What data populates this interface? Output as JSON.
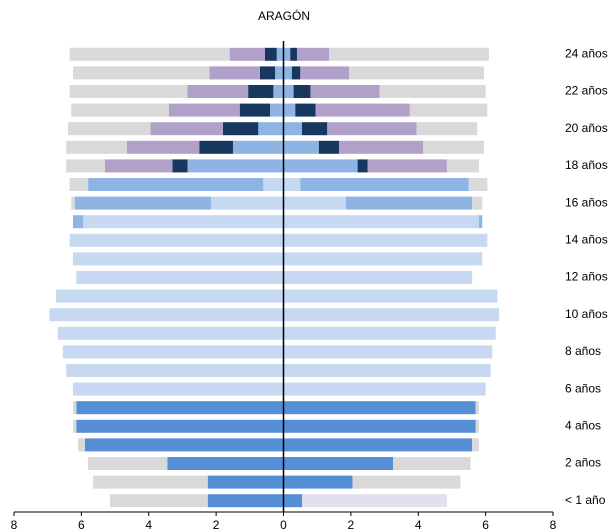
{
  "chart_data": {
    "type": "pyramid",
    "title": "ARAGÓN",
    "categories": [
      "< 1 año",
      null,
      "2 años",
      null,
      "4 años",
      null,
      "6 años",
      null,
      "8 años",
      null,
      "10 años",
      null,
      "12 años",
      null,
      "14 años",
      null,
      "16 años",
      null,
      "18 años",
      null,
      "20 años",
      null,
      "22 años",
      null,
      "24 años"
    ],
    "xlim": [
      -8,
      8
    ],
    "xticks": [
      {
        "value": -8,
        "label": "8"
      },
      {
        "value": -6,
        "label": "6"
      },
      {
        "value": -4,
        "label": "4"
      },
      {
        "value": -2,
        "label": "2"
      },
      0,
      2,
      4,
      6,
      8
    ],
    "series": [
      {
        "color": "#c6d9f1",
        "left": [
          0,
          0,
          0,
          0,
          0,
          0,
          -6.25,
          -6.45,
          -6.55,
          -6.7,
          -6.95,
          -6.75,
          -6.15,
          -6.25,
          -6.35,
          -5.95,
          -2.15,
          -0.6,
          0,
          0,
          0,
          0,
          0,
          0,
          0
        ],
        "right": [
          0,
          0,
          0,
          0,
          0,
          0,
          6.0,
          6.15,
          6.2,
          6.3,
          6.4,
          6.35,
          5.6,
          5.9,
          6.05,
          5.8,
          1.85,
          0.5,
          0,
          0,
          0,
          0,
          0,
          0,
          0
        ]
      },
      {
        "color": "#8db4e2",
        "left": [
          0,
          0,
          0,
          0,
          0,
          0,
          0,
          0,
          0,
          0,
          0,
          0,
          0,
          0,
          0,
          -0.3,
          -4.05,
          -5.2,
          -2.85,
          -1.5,
          -0.75,
          -0.4,
          -0.3,
          -0.25,
          -0.2
        ],
        "right": [
          0,
          0,
          0,
          0,
          0,
          0,
          0,
          0,
          0,
          0,
          0,
          0,
          0,
          0,
          0,
          0.1,
          3.75,
          5.0,
          2.2,
          1.05,
          0.55,
          0.35,
          0.3,
          0.25,
          0.2
        ]
      },
      {
        "color": "#558ed5",
        "left": [
          -2.25,
          -2.25,
          -3.45,
          -5.9,
          -6.15,
          -6.15,
          0,
          0,
          0,
          0,
          0,
          0,
          0,
          0,
          0,
          0,
          0,
          0,
          0,
          0,
          0,
          0,
          0,
          0,
          0
        ],
        "right": [
          0.55,
          2.05,
          3.25,
          5.6,
          5.7,
          5.7,
          0,
          0,
          0,
          0,
          0,
          0,
          0,
          0,
          0,
          0,
          0,
          0,
          0,
          0,
          0,
          0,
          0,
          0,
          0
        ]
      },
      {
        "color": "#17375e",
        "left": [
          0,
          0,
          0,
          0,
          0,
          0,
          0,
          0,
          0,
          0,
          0,
          0,
          0,
          0,
          0,
          0,
          0,
          0,
          -0.45,
          -1.0,
          -1.05,
          -0.9,
          -0.75,
          -0.45,
          -0.35
        ],
        "right": [
          0,
          0,
          0,
          0,
          0,
          0,
          0,
          0,
          0,
          0,
          0,
          0,
          0,
          0,
          0,
          0,
          0,
          0,
          0.3,
          0.6,
          0.75,
          0.6,
          0.5,
          0.25,
          0.2
        ]
      },
      {
        "color": "#b1a0c7",
        "left": [
          0,
          0,
          0,
          0,
          0,
          0,
          0,
          0,
          0,
          0,
          0,
          0,
          0,
          0,
          0,
          0,
          0,
          0,
          -2.0,
          -2.15,
          -2.15,
          -2.1,
          -1.8,
          -1.5,
          -1.05
        ],
        "right": [
          0,
          0,
          0,
          0,
          0,
          0,
          0,
          0,
          0,
          0,
          0,
          0,
          0,
          0,
          0,
          0,
          0,
          0,
          2.35,
          2.5,
          2.65,
          2.8,
          2.05,
          1.45,
          0.95
        ]
      },
      {
        "color": "#e4dfec",
        "left": [
          0,
          0,
          0,
          0,
          0,
          0,
          0,
          0,
          0,
          0,
          0,
          0,
          0,
          0,
          0,
          0,
          0,
          0,
          0,
          0,
          0,
          0,
          0,
          0,
          0
        ],
        "right": [
          4.3,
          0,
          0,
          0,
          0,
          0,
          0,
          0,
          0,
          0,
          0,
          0,
          0,
          0,
          0,
          0,
          0,
          0,
          0,
          0,
          0,
          0,
          0,
          0,
          0
        ]
      },
      {
        "color": "#d9d9d9",
        "left": [
          -2.9,
          -3.4,
          -2.35,
          -0.2,
          -0.1,
          -0.1,
          0,
          0,
          0,
          0,
          0,
          0,
          0,
          0,
          0,
          0,
          -0.1,
          -0.55,
          -1.15,
          -1.8,
          -2.45,
          -2.9,
          -3.5,
          -4.05,
          -4.75
        ],
        "right": [
          0,
          3.2,
          2.3,
          0.2,
          0.1,
          0.1,
          0,
          0,
          0,
          0,
          0,
          0,
          0,
          0,
          0,
          0,
          0.3,
          0.55,
          0.95,
          1.8,
          1.8,
          2.3,
          3.15,
          4.0,
          4.75
        ]
      }
    ]
  }
}
